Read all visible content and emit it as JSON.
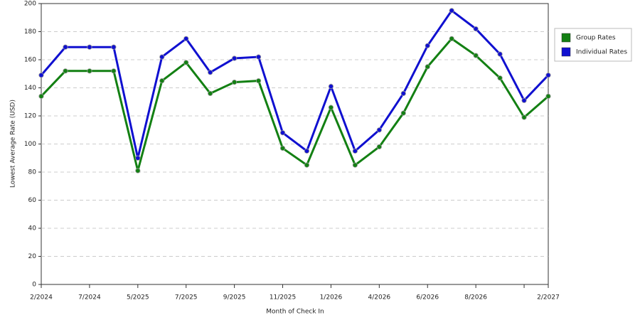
{
  "chart_data": {
    "type": "line",
    "x_label": "Month of Check In",
    "y_label": "Lowest Average Rate (USD)",
    "categories": [
      "2/2024",
      null,
      "7/2024",
      null,
      "5/2025",
      null,
      "7/2025",
      null,
      "9/2025",
      null,
      "11/2025",
      null,
      "1/2026",
      null,
      "4/2026",
      null,
      "6/2026",
      null,
      "8/2026",
      null,
      null,
      "2/2027"
    ],
    "series": [
      {
        "name": "Group Rates",
        "color": "#138013",
        "values": [
          134,
          152,
          152,
          152,
          81,
          145,
          158,
          136,
          144,
          145,
          97,
          85,
          126,
          85,
          98,
          122,
          155,
          175,
          163,
          147,
          119,
          134
        ]
      },
      {
        "name": "Individual Rates",
        "color": "#1010d0",
        "values": [
          149,
          169,
          169,
          169,
          90,
          162,
          175,
          151,
          161,
          162,
          108,
          95,
          141,
          95,
          110,
          136,
          170,
          195,
          182,
          164,
          131,
          149
        ]
      }
    ],
    "ylim": [
      0,
      200
    ],
    "yticks": [
      0,
      20,
      40,
      60,
      80,
      100,
      120,
      140,
      160,
      180,
      200
    ],
    "grid": true,
    "legend": "right"
  }
}
